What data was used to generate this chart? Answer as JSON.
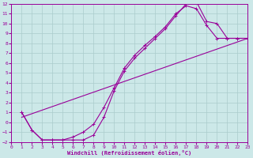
{
  "bg_color": "#cce8e8",
  "grid_color": "#aacccc",
  "line_color": "#990099",
  "xlabel": "Windchill (Refroidissement éolien,°C)",
  "xlim": [
    0,
    23
  ],
  "ylim": [
    -2,
    12
  ],
  "xticks": [
    0,
    1,
    2,
    3,
    4,
    5,
    6,
    7,
    8,
    9,
    10,
    11,
    12,
    13,
    14,
    15,
    16,
    17,
    18,
    19,
    20,
    21,
    22,
    23
  ],
  "yticks": [
    -2,
    -1,
    0,
    1,
    2,
    3,
    4,
    5,
    6,
    7,
    8,
    9,
    10,
    11,
    12
  ],
  "curve1_x": [
    1,
    2,
    3,
    4,
    5,
    6,
    7,
    8,
    9,
    10,
    11,
    12,
    13,
    14,
    15,
    16,
    17,
    18,
    19,
    20,
    21,
    22,
    23
  ],
  "curve1_y": [
    1.0,
    -0.8,
    -1.8,
    -1.8,
    -1.8,
    -1.8,
    -1.8,
    -1.3,
    0.5,
    3.2,
    5.2,
    6.5,
    7.5,
    8.5,
    9.5,
    10.8,
    12.0,
    12.2,
    10.2,
    10.0,
    8.5,
    8.5,
    8.5
  ],
  "curve2_x": [
    1,
    2,
    3,
    4,
    5,
    6,
    7,
    8,
    9,
    10,
    11,
    12,
    13,
    14,
    15,
    16,
    17,
    18,
    19,
    20,
    21,
    22,
    23
  ],
  "curve2_y": [
    1.0,
    -0.8,
    -1.8,
    -1.8,
    -1.8,
    -1.5,
    -1.0,
    -0.2,
    1.5,
    3.5,
    5.5,
    6.8,
    7.8,
    8.7,
    9.7,
    11.0,
    11.8,
    11.5,
    9.8,
    8.5,
    8.5,
    8.5,
    8.5
  ],
  "curve3_x": [
    1,
    23
  ],
  "curve3_y": [
    0.5,
    8.5
  ]
}
